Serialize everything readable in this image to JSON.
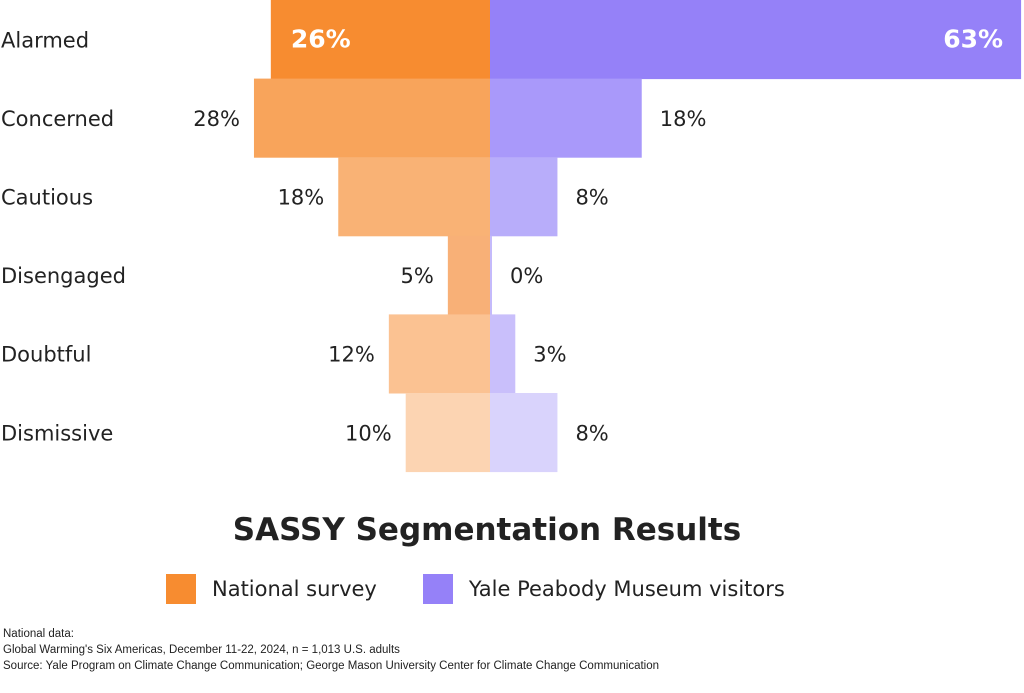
{
  "chart_data": {
    "type": "bar",
    "orientation": "diverging-horizontal",
    "title": "SASSY Segmentation Results",
    "categories": [
      "Alarmed",
      "Concerned",
      "Cautious",
      "Disengaged",
      "Doubtful",
      "Dismissive"
    ],
    "series": [
      {
        "name": "National survey",
        "side": "left",
        "values": [
          26,
          28,
          18,
          5,
          12,
          10
        ],
        "colors": [
          "#F78C30",
          "#F8A45B",
          "#F9B275",
          "#F8B077",
          "#FBC292",
          "#FCD4B2"
        ]
      },
      {
        "name": "Yale Peabody Museum visitors",
        "side": "right",
        "values": [
          63,
          18,
          8,
          0,
          3,
          8
        ],
        "colors": [
          "#9581F8",
          "#A999FA",
          "#B8ADFA",
          "#C4BAFB",
          "#C9BFFB",
          "#D9D3FC"
        ]
      }
    ],
    "value_suffix": "%",
    "legend": {
      "placement": "bottom",
      "colors": [
        "#F78C30",
        "#9581F8"
      ]
    }
  },
  "notes": [
    "National data:",
    "Global Warming's Six Americas, December 11-22, 2024, n = 1,013 U.S. adults",
    "Source: Yale Program on Climate Change Communication; George Mason University Center for Climate Change Communication"
  ]
}
